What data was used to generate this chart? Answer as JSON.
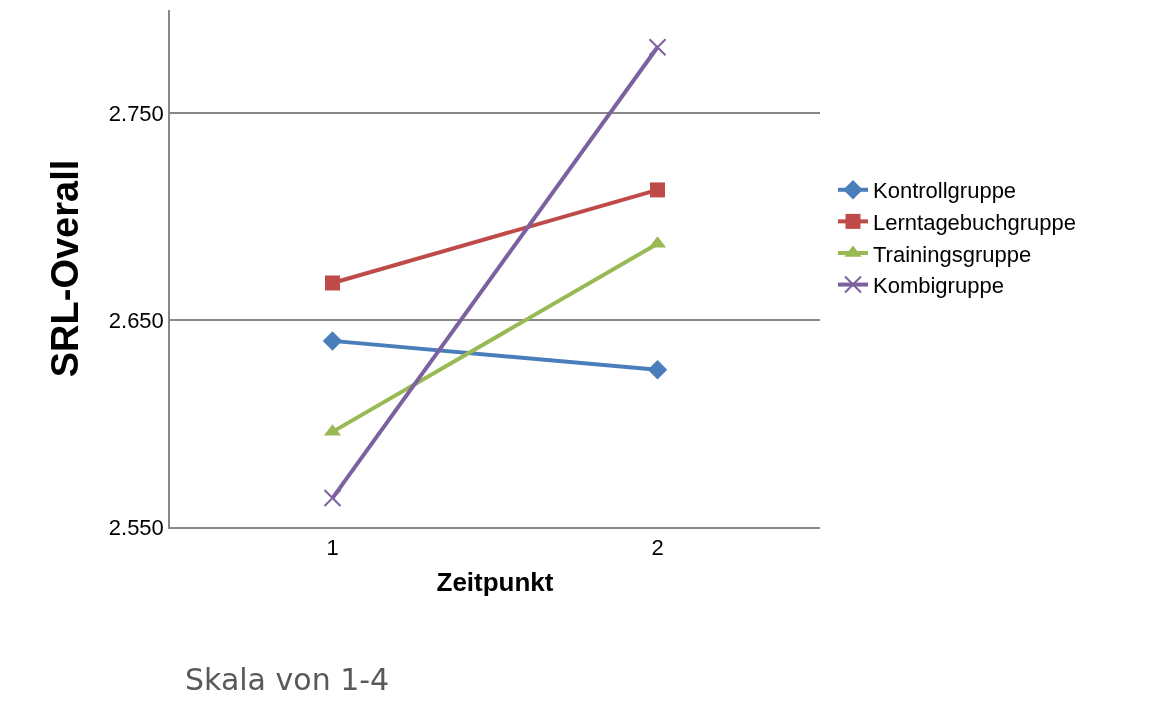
{
  "chart_data": {
    "type": "line",
    "xlabel": "Zeitpunkt",
    "ylabel": "SRL-Overall",
    "categories": [
      "1",
      "2"
    ],
    "series": [
      {
        "name": "Kontrollgruppe",
        "color": "#4a7ebb",
        "marker": "diamond",
        "values": [
          2.64,
          2.626
        ]
      },
      {
        "name": "Lerntagebuchgruppe",
        "color": "#be4b48",
        "marker": "square",
        "values": [
          2.668,
          2.713
        ]
      },
      {
        "name": "Trainingsgruppe",
        "color": "#98b954",
        "marker": "triangle",
        "values": [
          2.596,
          2.687
        ]
      },
      {
        "name": "Kombigruppe",
        "color": "#7d60a0",
        "marker": "cross",
        "values": [
          2.564,
          2.782
        ]
      }
    ],
    "ylim": [
      2.55,
      2.8
    ],
    "yticks": [
      {
        "value": 2.55,
        "label": "2.550"
      },
      {
        "value": 2.65,
        "label": "2.650"
      },
      {
        "value": 2.75,
        "label": "2.750"
      }
    ],
    "grid": "y",
    "legend": "right",
    "line_style": "solid",
    "annotations": [
      "Skala von 1-4"
    ]
  }
}
